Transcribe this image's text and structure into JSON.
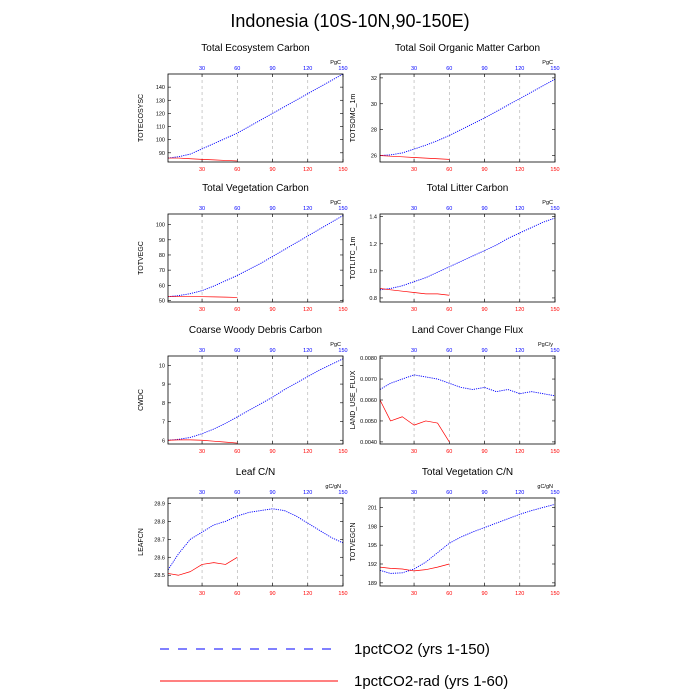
{
  "title": "Indonesia (10S-10N,90-150E)",
  "colors": {
    "series_a": "#0000ff",
    "series_b": "#ff0000",
    "grid": "#aaaaaa",
    "axis": "#000000"
  },
  "legend": [
    {
      "label": "1pctCO2 (yrs 1-150)",
      "style": "dashed",
      "color": "#0000ff"
    },
    {
      "label": "1pctCO2-rad (yrs 1-60)",
      "style": "solid",
      "color": "#ff0000"
    }
  ],
  "chart_data": [
    {
      "type": "line",
      "title": "Total Ecosystem Carbon",
      "ylabel": "TOTECOSYSC",
      "units": "PgC",
      "xlim": [
        1,
        150
      ],
      "ylim": [
        83,
        150
      ],
      "yticks": [
        90,
        100,
        110,
        120,
        130,
        140
      ],
      "xticks": [
        30,
        60,
        90,
        120,
        150
      ],
      "grid": "vertical-dashed",
      "series": [
        {
          "name": "1pctCO2 (yrs 1-150)",
          "x": [
            1,
            10,
            20,
            30,
            40,
            50,
            60,
            70,
            80,
            90,
            100,
            110,
            120,
            130,
            140,
            150
          ],
          "y": [
            86,
            87,
            89,
            93,
            97,
            101,
            105,
            110,
            115,
            120,
            125,
            130,
            135,
            140,
            145,
            150
          ]
        },
        {
          "name": "1pctCO2-rad (yrs 1-60)",
          "x": [
            1,
            10,
            20,
            30,
            40,
            50,
            60
          ],
          "y": [
            86,
            86,
            85.5,
            85,
            84.6,
            84.2,
            83.8
          ]
        }
      ]
    },
    {
      "type": "line",
      "title": "Total Soil Organic Matter Carbon",
      "ylabel": "TOTSOMC_1m",
      "units": "PgC",
      "xlim": [
        1,
        150
      ],
      "ylim": [
        25.5,
        32.3
      ],
      "yticks": [
        26.0,
        28.0,
        30.0,
        32.0
      ],
      "xticks": [
        30,
        60,
        90,
        120,
        150
      ],
      "grid": "vertical-dashed",
      "series": [
        {
          "name": "1pctCO2 (yrs 1-150)",
          "x": [
            1,
            10,
            20,
            30,
            40,
            50,
            60,
            70,
            80,
            90,
            100,
            110,
            120,
            130,
            140,
            150
          ],
          "y": [
            26.0,
            26.05,
            26.2,
            26.5,
            26.8,
            27.15,
            27.55,
            28.0,
            28.45,
            28.9,
            29.4,
            29.9,
            30.4,
            30.9,
            31.4,
            31.9
          ]
        },
        {
          "name": "1pctCO2-rad (yrs 1-60)",
          "x": [
            1,
            10,
            20,
            30,
            40,
            50,
            60
          ],
          "y": [
            26.0,
            25.95,
            25.9,
            25.85,
            25.8,
            25.75,
            25.7
          ]
        }
      ]
    },
    {
      "type": "line",
      "title": "Total Vegetation Carbon",
      "ylabel": "TOTVEGC",
      "units": "PgC",
      "xlim": [
        1,
        150
      ],
      "ylim": [
        49,
        107
      ],
      "yticks": [
        50,
        60,
        70,
        80,
        90,
        100
      ],
      "xticks": [
        30,
        60,
        90,
        120,
        150
      ],
      "grid": "vertical-dashed",
      "series": [
        {
          "name": "1pctCO2 (yrs 1-150)",
          "x": [
            1,
            10,
            20,
            30,
            40,
            50,
            60,
            70,
            80,
            90,
            100,
            110,
            120,
            130,
            140,
            150
          ],
          "y": [
            52.5,
            53.2,
            54.5,
            56.5,
            59.5,
            63,
            66.5,
            70.5,
            74.5,
            79,
            83.5,
            88,
            92.5,
            97,
            101.5,
            106
          ]
        },
        {
          "name": "1pctCO2-rad (yrs 1-60)",
          "x": [
            1,
            10,
            20,
            30,
            40,
            50,
            60
          ],
          "y": [
            52.5,
            52.6,
            52.6,
            52.5,
            52.4,
            52.2,
            52.0
          ]
        }
      ]
    },
    {
      "type": "line",
      "title": "Total Litter Carbon",
      "ylabel": "TOTLITC_1m",
      "units": "PgC",
      "xlim": [
        1,
        150
      ],
      "ylim": [
        0.77,
        1.42
      ],
      "yticks": [
        0.8,
        1.0,
        1.2,
        1.4
      ],
      "xticks": [
        30,
        60,
        90,
        120,
        150
      ],
      "grid": "vertical-dashed",
      "series": [
        {
          "name": "1pctCO2 (yrs 1-150)",
          "x": [
            1,
            10,
            20,
            30,
            40,
            50,
            60,
            70,
            80,
            90,
            100,
            110,
            120,
            130,
            140,
            150
          ],
          "y": [
            0.86,
            0.87,
            0.89,
            0.92,
            0.95,
            0.99,
            1.03,
            1.07,
            1.11,
            1.15,
            1.19,
            1.24,
            1.28,
            1.32,
            1.36,
            1.39
          ]
        },
        {
          "name": "1pctCO2-rad (yrs 1-60)",
          "x": [
            1,
            10,
            20,
            30,
            40,
            50,
            60
          ],
          "y": [
            0.87,
            0.86,
            0.85,
            0.84,
            0.83,
            0.83,
            0.82
          ]
        }
      ]
    },
    {
      "type": "line",
      "title": "Coarse Woody Debris Carbon",
      "ylabel": "CWDC",
      "units": "PgC",
      "xlim": [
        1,
        150
      ],
      "ylim": [
        5.8,
        10.5
      ],
      "yticks": [
        6.0,
        7.0,
        8.0,
        9.0,
        10.0
      ],
      "xticks": [
        30,
        60,
        90,
        120,
        150
      ],
      "grid": "vertical-dashed",
      "series": [
        {
          "name": "1pctCO2 (yrs 1-150)",
          "x": [
            1,
            10,
            20,
            30,
            40,
            50,
            60,
            70,
            80,
            90,
            100,
            110,
            120,
            130,
            140,
            150
          ],
          "y": [
            6.0,
            6.05,
            6.15,
            6.35,
            6.6,
            6.9,
            7.25,
            7.6,
            7.95,
            8.3,
            8.7,
            9.05,
            9.4,
            9.75,
            10.05,
            10.35
          ]
        },
        {
          "name": "1pctCO2-rad (yrs 1-60)",
          "x": [
            1,
            10,
            20,
            30,
            40,
            50,
            60
          ],
          "y": [
            6.0,
            6.02,
            6.02,
            6.0,
            5.95,
            5.9,
            5.85
          ]
        }
      ]
    },
    {
      "type": "line",
      "title": "Land Cover Change Flux",
      "ylabel": "LAND_USE_FLUX",
      "units": "PgC/y",
      "xlim": [
        1,
        150
      ],
      "ylim": [
        0.0039,
        0.0081
      ],
      "yticks": [
        0.004,
        0.005,
        0.006,
        0.007,
        0.008
      ],
      "xticks": [
        30,
        60,
        90,
        120,
        150
      ],
      "grid": "vertical-dashed",
      "series": [
        {
          "name": "1pctCO2 (yrs 1-150)",
          "x": [
            1,
            10,
            20,
            30,
            40,
            50,
            60,
            70,
            80,
            90,
            100,
            110,
            120,
            130,
            140,
            150
          ],
          "y": [
            0.0065,
            0.0068,
            0.007,
            0.0072,
            0.0071,
            0.007,
            0.0068,
            0.0066,
            0.0065,
            0.0066,
            0.0064,
            0.0065,
            0.0063,
            0.0064,
            0.0063,
            0.0062
          ]
        },
        {
          "name": "1pctCO2-rad (yrs 1-60)",
          "x": [
            1,
            10,
            20,
            30,
            40,
            50,
            60
          ],
          "y": [
            0.006,
            0.005,
            0.0052,
            0.0048,
            0.005,
            0.0049,
            0.004
          ]
        }
      ]
    },
    {
      "type": "line",
      "title": "Leaf C/N",
      "ylabel": "LEAFCN",
      "units": "gC/gN",
      "xlim": [
        1,
        150
      ],
      "ylim": [
        28.44,
        28.93
      ],
      "yticks": [
        28.5,
        28.6,
        28.7,
        28.8,
        28.9
      ],
      "xticks": [
        30,
        60,
        90,
        120,
        150
      ],
      "grid": "vertical-dashed",
      "series": [
        {
          "name": "1pctCO2 (yrs 1-150)",
          "x": [
            1,
            10,
            20,
            30,
            40,
            50,
            60,
            70,
            80,
            90,
            100,
            110,
            120,
            130,
            140,
            150
          ],
          "y": [
            28.53,
            28.62,
            28.7,
            28.74,
            28.78,
            28.8,
            28.83,
            28.85,
            28.86,
            28.87,
            28.86,
            28.83,
            28.79,
            28.75,
            28.71,
            28.68
          ]
        },
        {
          "name": "1pctCO2-rad (yrs 1-60)",
          "x": [
            1,
            10,
            20,
            30,
            40,
            50,
            60
          ],
          "y": [
            28.51,
            28.5,
            28.52,
            28.56,
            28.57,
            28.56,
            28.6
          ]
        }
      ]
    },
    {
      "type": "line",
      "title": "Total Vegetation C/N",
      "ylabel": "TOTVEGCN",
      "units": "gC/gN",
      "xlim": [
        1,
        150
      ],
      "ylim": [
        188.5,
        202.5
      ],
      "yticks": [
        189,
        192,
        195,
        198,
        201
      ],
      "xticks": [
        30,
        60,
        90,
        120,
        150
      ],
      "grid": "vertical-dashed",
      "series": [
        {
          "name": "1pctCO2 (yrs 1-150)",
          "x": [
            1,
            10,
            20,
            30,
            40,
            50,
            60,
            70,
            80,
            90,
            100,
            110,
            120,
            130,
            140,
            150
          ],
          "y": [
            191,
            190.5,
            190.6,
            191.2,
            192.3,
            193.8,
            195.3,
            196.3,
            197.1,
            197.8,
            198.5,
            199.2,
            199.9,
            200.5,
            201.0,
            201.5
          ]
        },
        {
          "name": "1pctCO2-rad (yrs 1-60)",
          "x": [
            1,
            10,
            20,
            30,
            40,
            50,
            60
          ],
          "y": [
            191.5,
            191.3,
            191.2,
            190.9,
            191.1,
            191.5,
            192.0
          ]
        }
      ]
    }
  ]
}
